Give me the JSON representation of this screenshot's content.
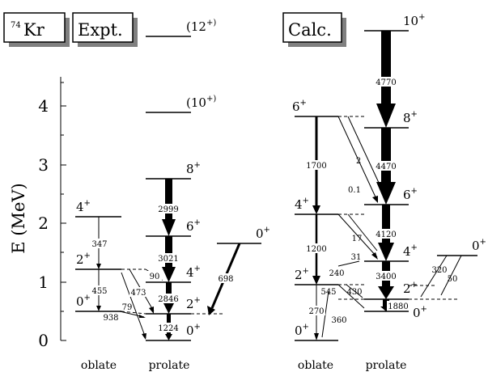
{
  "boxes": {
    "nucleus": {
      "sup": "74",
      "text": "Kr"
    },
    "expt": "Expt.",
    "calc": "Calc."
  },
  "axis": {
    "title": "E (MeV)",
    "ticks": [
      "0",
      "1",
      "2",
      "3",
      "4"
    ],
    "range_mev": [
      0,
      4.4
    ]
  },
  "experiment": {
    "oblate_levels": [
      {
        "jp": "0",
        "par": "+",
        "energy_mev": 0.5
      },
      {
        "jp": "2",
        "par": "+",
        "energy_mev": 1.2
      },
      {
        "jp": "4",
        "par": "+",
        "energy_mev": 2.1
      }
    ],
    "prolate_levels": [
      {
        "jp": "0",
        "par": "+",
        "energy_mev": 0.0
      },
      {
        "jp": "2",
        "par": "+",
        "energy_mev": 0.45
      },
      {
        "jp": "4",
        "par": "+",
        "energy_mev": 1.0
      },
      {
        "jp": "6",
        "par": "+",
        "energy_mev": 1.75
      },
      {
        "jp": "8",
        "par": "+",
        "energy_mev": 2.75
      },
      {
        "jp": "(10",
        "par": "+)",
        "energy_mev": 3.9
      },
      {
        "jp": "(12",
        "par": "+)",
        "energy_mev": 5.0
      }
    ],
    "side_level": {
      "jp": "0",
      "par": "+",
      "energy_mev": 1.65
    },
    "be2_values": [
      "347",
      "455",
      "938",
      "79",
      "473",
      "90",
      "1224",
      "2846",
      "3021",
      "2999",
      "698"
    ],
    "group_labels": [
      "oblate",
      "prolate"
    ]
  },
  "calculation": {
    "oblate_levels": [
      {
        "jp": "0",
        "par": "+",
        "energy_mev": 0.0
      },
      {
        "jp": "2",
        "par": "+",
        "energy_mev": 0.95
      },
      {
        "jp": "4",
        "par": "+",
        "energy_mev": 2.15
      },
      {
        "jp": "6",
        "par": "+",
        "energy_mev": 3.8
      }
    ],
    "prolate_levels": [
      {
        "jp": "0",
        "par": "+",
        "energy_mev": 0.5
      },
      {
        "jp": "2",
        "par": "+",
        "energy_mev": 0.7
      },
      {
        "jp": "4",
        "par": "+",
        "energy_mev": 1.35
      },
      {
        "jp": "6",
        "par": "+",
        "energy_mev": 2.3
      },
      {
        "jp": "8",
        "par": "+",
        "energy_mev": 3.6
      },
      {
        "jp": "10",
        "par": "+",
        "energy_mev": 5.0
      }
    ],
    "side_level": {
      "jp": "0",
      "par": "+",
      "energy_mev": 1.45
    },
    "be2_values": [
      "4770",
      "4470",
      "4120",
      "3400",
      "1880",
      "1700",
      "1200",
      "270",
      "360",
      "545",
      "430",
      "240",
      "31",
      "17",
      "2",
      "0.1",
      "320",
      "50"
    ],
    "group_labels": [
      "oblate",
      "prolate"
    ]
  }
}
